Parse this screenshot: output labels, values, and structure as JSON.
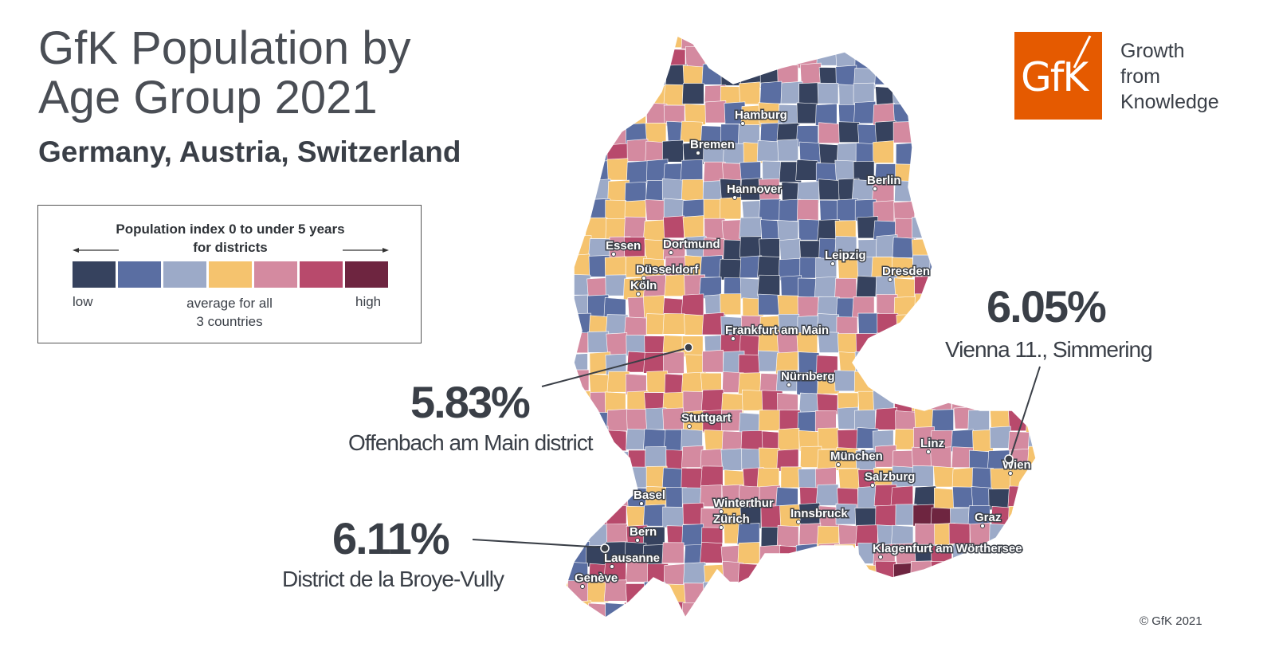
{
  "header": {
    "title_line1": "GfK Population by",
    "title_line2": "Age Group 2021",
    "subtitle": "Germany, Austria, Switzerland"
  },
  "legend": {
    "title_line1": "Population index 0 to under 5 years",
    "title_line2": "for districts",
    "low": "low",
    "average_line1": "average for all",
    "average_line2": "3 countries",
    "high": "high",
    "colors": [
      "#36425e",
      "#5a6ea2",
      "#9caac8",
      "#f5c36e",
      "#d48aa0",
      "#b84a6c",
      "#6e2540"
    ]
  },
  "logo": {
    "text": "GfK",
    "color": "#e55a00",
    "tagline_line1": "Growth",
    "tagline_line2": "from",
    "tagline_line3": "Knowledge"
  },
  "cities": [
    {
      "name": "Hamburg"
    },
    {
      "name": "Bremen"
    },
    {
      "name": "Berlin"
    },
    {
      "name": "Hannover"
    },
    {
      "name": "Essen"
    },
    {
      "name": "Dortmund"
    },
    {
      "name": "Düsseldorf"
    },
    {
      "name": "Köln"
    },
    {
      "name": "Leipzig"
    },
    {
      "name": "Dresden"
    },
    {
      "name": "Frankfurt am Main"
    },
    {
      "name": "Nürnberg"
    },
    {
      "name": "Stuttgart"
    },
    {
      "name": "Linz"
    },
    {
      "name": "Wien"
    },
    {
      "name": "München"
    },
    {
      "name": "Salzburg"
    },
    {
      "name": "Basel"
    },
    {
      "name": "Winterthur"
    },
    {
      "name": "Zürich"
    },
    {
      "name": "Innsbruck"
    },
    {
      "name": "Graz"
    },
    {
      "name": "Bern"
    },
    {
      "name": "Klagenfurt am Wörthersee"
    },
    {
      "name": "Lausanne"
    },
    {
      "name": "Genève"
    }
  ],
  "callouts": [
    {
      "value": "6.05%",
      "label": "Vienna 11., Simmering"
    },
    {
      "value": "5.83%",
      "label": "Offenbach am Main district"
    },
    {
      "value": "6.11%",
      "label": "District de la Broye-Vully"
    }
  ],
  "footer": {
    "copyright": "© GfK 2021"
  }
}
